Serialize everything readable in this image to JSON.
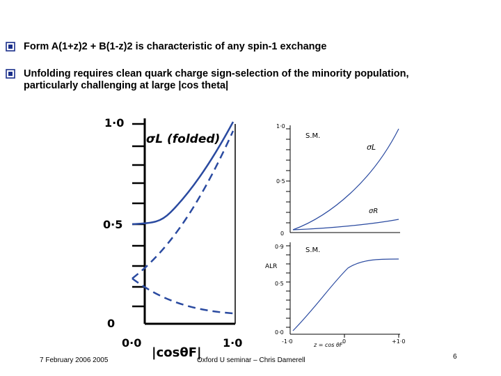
{
  "bullets": [
    {
      "text": "Form A(1+z)2 + B(1-z)2  is characteristic of any spin-1 exchange"
    },
    {
      "line1": "Unfolding requires clean quark charge sign-selection of the minority population,",
      "line2": "particularly challenging at large |cos theta|"
    }
  ],
  "left_plot": {
    "label_title": "σL (folded)",
    "y_top": "1·0",
    "y_mid": "0·5",
    "y_zero": "0",
    "x_start": "0·0",
    "x_end": "1·0",
    "x_label": "|cosθF|"
  },
  "right_top": {
    "label": "S.M.",
    "y_top": "1·0",
    "y_mid": "0·5",
    "y_zero": "0",
    "curve_upper": "σL",
    "curve_lower": "σR"
  },
  "right_bottom": {
    "label": "S.M.",
    "y_top": "0·9",
    "y_mid": "0·5",
    "y_zero": "0·0",
    "y_label": "ALR",
    "x_left": "-1·0",
    "x_mid": "0",
    "x_right": "+1·0",
    "x_label": "z = cos θF"
  },
  "footer": {
    "date": "7 February 2006 2005",
    "seminar": "Oxford U seminar  – Chris Damerell",
    "page": "6"
  },
  "colors": {
    "accent": "#1a2f8a",
    "text": "#000000"
  }
}
